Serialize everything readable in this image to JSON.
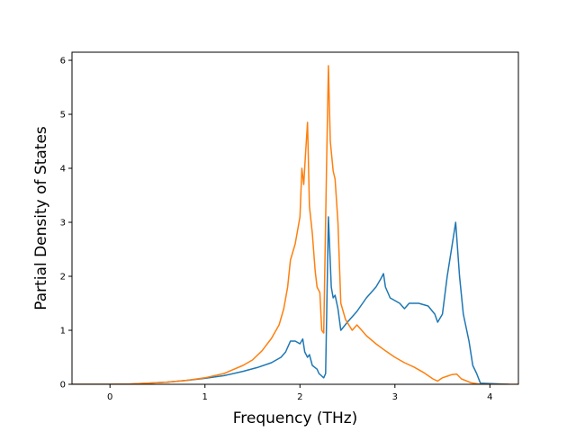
{
  "chart_data": {
    "type": "line",
    "title": "",
    "xlabel": "Frequency (THz)",
    "ylabel": "Partial Density of States",
    "xlim": [
      -0.4,
      4.3
    ],
    "ylim": [
      0,
      6.15
    ],
    "xticks": [
      0,
      1,
      2,
      3,
      4
    ],
    "yticks": [
      0,
      1,
      2,
      3,
      4,
      5,
      6
    ],
    "grid": false,
    "legend": "none",
    "series": [
      {
        "color": "#1f77b4",
        "points": [
          [
            -0.4,
            0
          ],
          [
            0.0,
            0.0
          ],
          [
            0.2,
            0.005
          ],
          [
            0.4,
            0.02
          ],
          [
            0.6,
            0.04
          ],
          [
            0.8,
            0.07
          ],
          [
            1.0,
            0.11
          ],
          [
            1.2,
            0.16
          ],
          [
            1.4,
            0.24
          ],
          [
            1.55,
            0.31
          ],
          [
            1.7,
            0.4
          ],
          [
            1.8,
            0.5
          ],
          [
            1.85,
            0.6
          ],
          [
            1.9,
            0.8
          ],
          [
            1.95,
            0.8
          ],
          [
            2.0,
            0.75
          ],
          [
            2.03,
            0.84
          ],
          [
            2.05,
            0.6
          ],
          [
            2.08,
            0.5
          ],
          [
            2.1,
            0.55
          ],
          [
            2.13,
            0.35
          ],
          [
            2.18,
            0.28
          ],
          [
            2.2,
            0.2
          ],
          [
            2.25,
            0.12
          ],
          [
            2.27,
            0.2
          ],
          [
            2.3,
            3.1
          ],
          [
            2.33,
            1.8
          ],
          [
            2.35,
            1.6
          ],
          [
            2.37,
            1.65
          ],
          [
            2.4,
            1.4
          ],
          [
            2.43,
            1.0
          ],
          [
            2.5,
            1.15
          ],
          [
            2.6,
            1.35
          ],
          [
            2.7,
            1.6
          ],
          [
            2.8,
            1.8
          ],
          [
            2.85,
            1.95
          ],
          [
            2.88,
            2.05
          ],
          [
            2.9,
            1.8
          ],
          [
            2.95,
            1.6
          ],
          [
            3.0,
            1.55
          ],
          [
            3.05,
            1.5
          ],
          [
            3.1,
            1.4
          ],
          [
            3.15,
            1.5
          ],
          [
            3.25,
            1.5
          ],
          [
            3.35,
            1.45
          ],
          [
            3.42,
            1.3
          ],
          [
            3.45,
            1.15
          ],
          [
            3.5,
            1.3
          ],
          [
            3.55,
            2.0
          ],
          [
            3.6,
            2.55
          ],
          [
            3.64,
            3.0
          ],
          [
            3.68,
            2.0
          ],
          [
            3.72,
            1.3
          ],
          [
            3.78,
            0.8
          ],
          [
            3.82,
            0.35
          ],
          [
            3.86,
            0.2
          ],
          [
            3.9,
            0.02
          ],
          [
            4.2,
            0
          ]
        ]
      },
      {
        "color": "#ff7f0e",
        "points": [
          [
            -0.4,
            0
          ],
          [
            0.0,
            0.0
          ],
          [
            0.2,
            0.005
          ],
          [
            0.4,
            0.02
          ],
          [
            0.6,
            0.04
          ],
          [
            0.8,
            0.07
          ],
          [
            1.0,
            0.12
          ],
          [
            1.2,
            0.2
          ],
          [
            1.4,
            0.35
          ],
          [
            1.5,
            0.45
          ],
          [
            1.6,
            0.62
          ],
          [
            1.7,
            0.85
          ],
          [
            1.78,
            1.1
          ],
          [
            1.83,
            1.4
          ],
          [
            1.87,
            1.8
          ],
          [
            1.9,
            2.3
          ],
          [
            1.95,
            2.6
          ],
          [
            2.0,
            3.1
          ],
          [
            2.02,
            4.0
          ],
          [
            2.04,
            3.7
          ],
          [
            2.06,
            4.3
          ],
          [
            2.08,
            4.85
          ],
          [
            2.1,
            3.3
          ],
          [
            2.13,
            2.8
          ],
          [
            2.16,
            2.1
          ],
          [
            2.18,
            1.8
          ],
          [
            2.21,
            1.7
          ],
          [
            2.23,
            1.0
          ],
          [
            2.25,
            0.95
          ],
          [
            2.28,
            4.0
          ],
          [
            2.3,
            5.9
          ],
          [
            2.32,
            4.5
          ],
          [
            2.35,
            3.95
          ],
          [
            2.37,
            3.8
          ],
          [
            2.4,
            3.0
          ],
          [
            2.43,
            1.5
          ],
          [
            2.48,
            1.2
          ],
          [
            2.55,
            1.0
          ],
          [
            2.6,
            1.1
          ],
          [
            2.65,
            1.0
          ],
          [
            2.7,
            0.9
          ],
          [
            2.8,
            0.75
          ],
          [
            2.9,
            0.62
          ],
          [
            3.0,
            0.5
          ],
          [
            3.1,
            0.4
          ],
          [
            3.2,
            0.32
          ],
          [
            3.3,
            0.22
          ],
          [
            3.4,
            0.1
          ],
          [
            3.45,
            0.06
          ],
          [
            3.5,
            0.12
          ],
          [
            3.55,
            0.15
          ],
          [
            3.6,
            0.18
          ],
          [
            3.65,
            0.19
          ],
          [
            3.7,
            0.1
          ],
          [
            3.8,
            0.03
          ],
          [
            3.9,
            0.0
          ],
          [
            4.3,
            0
          ]
        ]
      }
    ]
  }
}
